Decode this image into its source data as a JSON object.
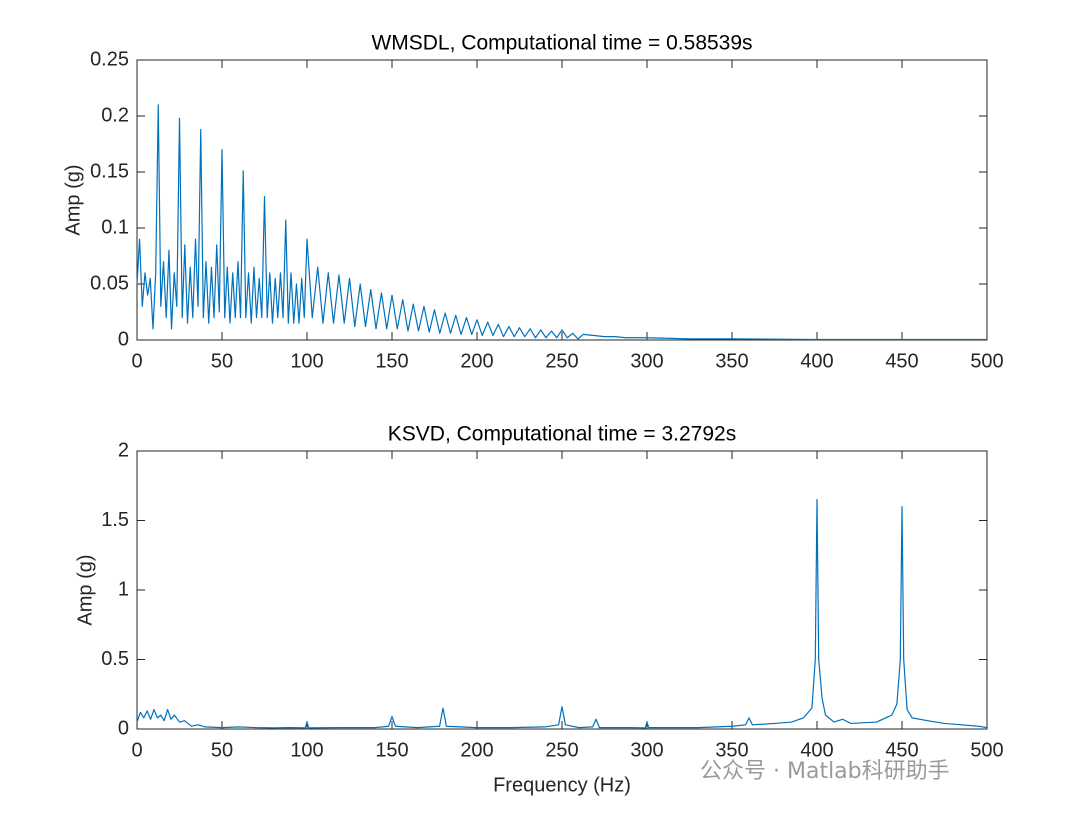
{
  "chart_data": [
    {
      "type": "line",
      "title": "WMSDL, Computational time = 0.58539s",
      "ylabel": "Amp (g)",
      "color": "#0072bd",
      "xlim": [
        0,
        500
      ],
      "ylim": [
        0,
        0.25
      ],
      "xticks": [
        0,
        50,
        100,
        150,
        200,
        250,
        300,
        350,
        400,
        450,
        500
      ],
      "yticks": [
        0,
        0.05,
        0.1,
        0.15,
        0.2,
        0.25
      ],
      "x": [
        0,
        1.5,
        3.1,
        4.7,
        6.25,
        7.8,
        9.4,
        11,
        12.5,
        14,
        15.6,
        17.2,
        18.8,
        20.3,
        21.9,
        23.4,
        25,
        26.6,
        28.1,
        29.7,
        31.3,
        32.8,
        34.4,
        35.9,
        37.5,
        39,
        40.6,
        42.2,
        43.8,
        45.3,
        46.9,
        48.4,
        50,
        51.6,
        53.1,
        54.7,
        56.3,
        57.8,
        59.4,
        60.9,
        62.5,
        64,
        65.6,
        67.2,
        68.8,
        70.3,
        71.9,
        73.4,
        75,
        76.6,
        78.1,
        79.7,
        81.3,
        82.8,
        84.4,
        85.9,
        87.5,
        89,
        90.6,
        92.2,
        93.8,
        95.3,
        96.9,
        98.4,
        100,
        103.1,
        106.3,
        109.4,
        112.5,
        115.6,
        118.8,
        121.9,
        125,
        128.1,
        131.3,
        134.4,
        137.5,
        140.6,
        143.8,
        146.9,
        150,
        153.1,
        156.3,
        159.4,
        162.5,
        165.6,
        168.8,
        171.9,
        175,
        178.1,
        181.3,
        184.4,
        187.5,
        190.6,
        193.8,
        196.9,
        200,
        203.1,
        206.3,
        209.4,
        212.5,
        215.6,
        218.8,
        221.9,
        225,
        228.1,
        231.3,
        234.4,
        237.5,
        240.6,
        243.8,
        246.9,
        250,
        253.1,
        256.3,
        259.4,
        262.5,
        268.8,
        275,
        281.3,
        287.5,
        300,
        325,
        350,
        400,
        500
      ],
      "values": [
        0.05,
        0.09,
        0.03,
        0.06,
        0.04,
        0.055,
        0.01,
        0.06,
        0.21,
        0.03,
        0.07,
        0.02,
        0.08,
        0.01,
        0.06,
        0.03,
        0.198,
        0.02,
        0.085,
        0.015,
        0.065,
        0.02,
        0.09,
        0.03,
        0.188,
        0.02,
        0.07,
        0.015,
        0.065,
        0.02,
        0.085,
        0.025,
        0.17,
        0.02,
        0.065,
        0.015,
        0.06,
        0.02,
        0.07,
        0.02,
        0.151,
        0.02,
        0.06,
        0.015,
        0.065,
        0.02,
        0.055,
        0.02,
        0.128,
        0.02,
        0.06,
        0.015,
        0.055,
        0.02,
        0.06,
        0.02,
        0.107,
        0.015,
        0.06,
        0.015,
        0.05,
        0.015,
        0.055,
        0.02,
        0.09,
        0.02,
        0.065,
        0.015,
        0.06,
        0.015,
        0.058,
        0.015,
        0.055,
        0.012,
        0.05,
        0.012,
        0.045,
        0.01,
        0.042,
        0.01,
        0.04,
        0.01,
        0.036,
        0.008,
        0.032,
        0.008,
        0.03,
        0.007,
        0.027,
        0.006,
        0.024,
        0.006,
        0.022,
        0.005,
        0.02,
        0.005,
        0.018,
        0.004,
        0.016,
        0.004,
        0.014,
        0.003,
        0.012,
        0.003,
        0.011,
        0.003,
        0.01,
        0.002,
        0.009,
        0.002,
        0.008,
        0.002,
        0.009,
        0.002,
        0.006,
        0.001,
        0.005,
        0.004,
        0.003,
        0.003,
        0.002,
        0.002,
        0.001,
        0.001,
        0.0005,
        0.0005
      ]
    },
    {
      "type": "line",
      "title": "KSVD, Computational time = 3.2792s",
      "ylabel": "Amp (g)",
      "xlabel": "Frequency (Hz)",
      "color": "#0072bd",
      "xlim": [
        0,
        500
      ],
      "ylim": [
        0,
        2
      ],
      "xticks": [
        0,
        50,
        100,
        150,
        200,
        250,
        300,
        350,
        400,
        450,
        500
      ],
      "yticks": [
        0,
        0.5,
        1,
        1.5,
        2
      ],
      "x": [
        0,
        2,
        4,
        6,
        8,
        10,
        12,
        14,
        16,
        18,
        20,
        22,
        25,
        28,
        32,
        36,
        40,
        50,
        60,
        70,
        80,
        90,
        99,
        100,
        101,
        120,
        140,
        148,
        150,
        152,
        165,
        178,
        180,
        182,
        200,
        220,
        240,
        248,
        250,
        252,
        260,
        268,
        270,
        272,
        290,
        299,
        300,
        301,
        330,
        350,
        358,
        360,
        362,
        375,
        385,
        392,
        397,
        399,
        400,
        401,
        403,
        405,
        410,
        415,
        420,
        435,
        444,
        447,
        449,
        450,
        451,
        453,
        456,
        465,
        475,
        485,
        495,
        500
      ],
      "values": [
        0.05,
        0.12,
        0.08,
        0.13,
        0.07,
        0.14,
        0.08,
        0.1,
        0.06,
        0.14,
        0.07,
        0.1,
        0.05,
        0.06,
        0.02,
        0.03,
        0.015,
        0.01,
        0.015,
        0.01,
        0.008,
        0.01,
        0.008,
        0.05,
        0.008,
        0.01,
        0.01,
        0.02,
        0.09,
        0.02,
        0.01,
        0.02,
        0.15,
        0.02,
        0.01,
        0.01,
        0.015,
        0.03,
        0.16,
        0.03,
        0.01,
        0.015,
        0.07,
        0.01,
        0.01,
        0.008,
        0.05,
        0.01,
        0.01,
        0.02,
        0.03,
        0.08,
        0.03,
        0.04,
        0.05,
        0.08,
        0.15,
        0.5,
        1.65,
        0.5,
        0.22,
        0.1,
        0.05,
        0.07,
        0.04,
        0.05,
        0.1,
        0.18,
        0.5,
        1.6,
        0.5,
        0.14,
        0.08,
        0.06,
        0.04,
        0.03,
        0.02,
        0.01
      ]
    }
  ],
  "watermark": "公众号 · Matlab科研助手"
}
